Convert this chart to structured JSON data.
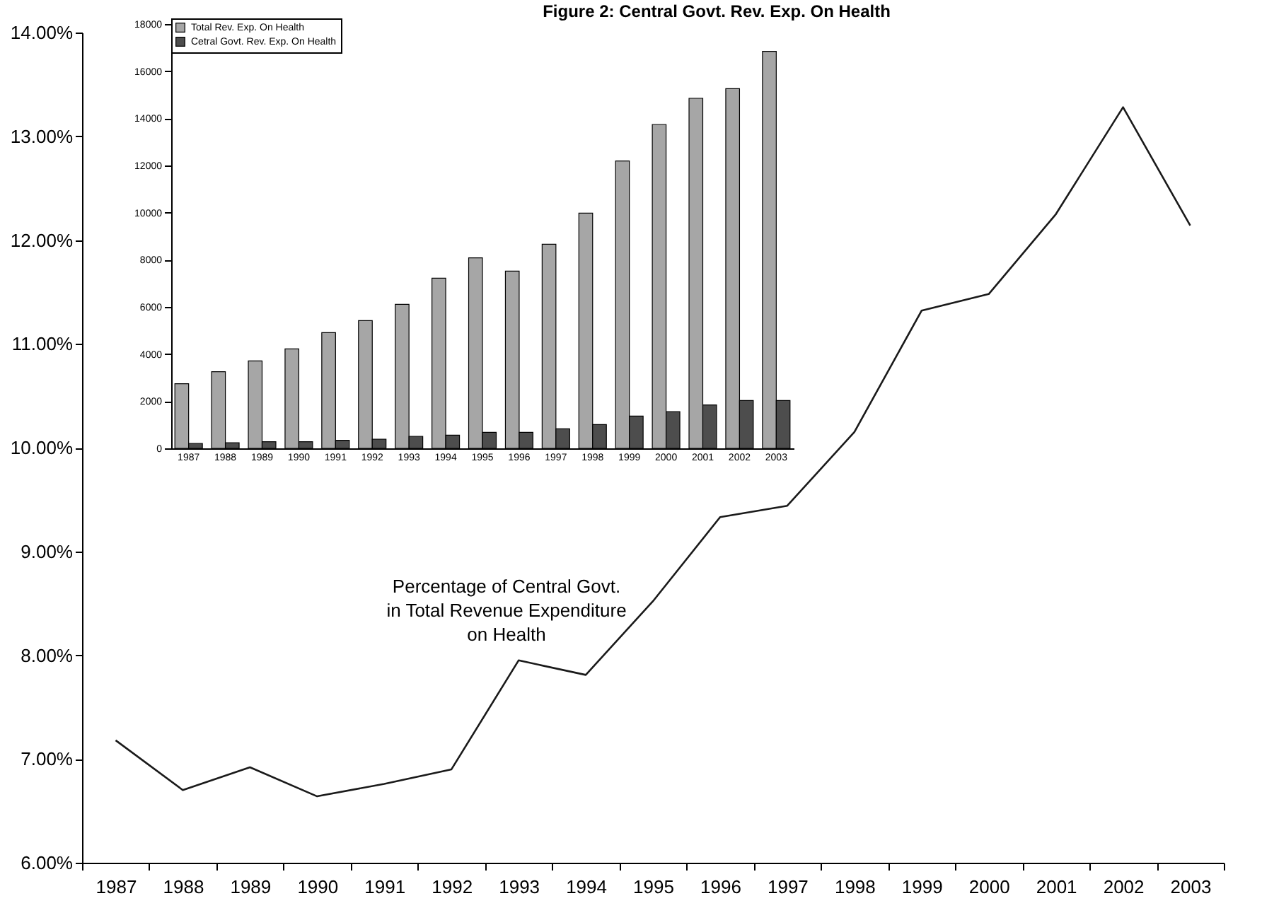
{
  "chart_data": [
    {
      "type": "line",
      "title": "Figure 2: Central Govt. Rev. Exp. On Health",
      "categories": [
        "1987",
        "1988",
        "1989",
        "1990",
        "1991",
        "1992",
        "1993",
        "1994",
        "1995",
        "1996",
        "1997",
        "1998",
        "1999",
        "2000",
        "2001",
        "2002",
        "2003"
      ],
      "series": [
        {
          "color": "#1a1a1a",
          "values": [
            7.18,
            6.7,
            6.92,
            6.64,
            6.76,
            6.9,
            7.95,
            7.81,
            8.52,
            9.33,
            9.44,
            10.15,
            11.32,
            11.48,
            12.25,
            13.28,
            12.14
          ]
        }
      ],
      "ylim": [
        6,
        14
      ],
      "yticks": [
        {
          "value": 6,
          "label": "6.00%"
        },
        {
          "value": 7,
          "label": "7.00%"
        },
        {
          "value": 8,
          "label": "8.00%"
        },
        {
          "value": 9,
          "label": "9.00%"
        },
        {
          "value": 10,
          "label": "10.00%"
        },
        {
          "value": 11,
          "label": "11.00%"
        },
        {
          "value": 12,
          "label": "12.00%"
        },
        {
          "value": 13,
          "label": "13.00%"
        },
        {
          "value": 14,
          "label": "14.00%"
        }
      ],
      "line_style": "solid",
      "annotations": [
        "Percentage of Central Govt.\nin Total Revenue Expenditure\non Health"
      ]
    },
    {
      "type": "bar",
      "categories": [
        "1987",
        "1988",
        "1989",
        "1990",
        "1991",
        "1992",
        "1993",
        "1994",
        "1995",
        "1996",
        "1997",
        "1998",
        "1999",
        "2000",
        "2001",
        "2002",
        "2003"
      ],
      "series": [
        {
          "name": "Total Rev. Exp. On Health",
          "color": "#a6a6a6",
          "values": [
            2740,
            3250,
            3710,
            4220,
            4910,
            5420,
            6110,
            7220,
            8080,
            7520,
            8660,
            9980,
            12190,
            13740,
            14850,
            15260,
            16840
          ]
        },
        {
          "name": "Cetral Govt. Rev. Exp. On Health",
          "color": "#4d4d4d",
          "values": [
            210,
            240,
            280,
            280,
            340,
            390,
            510,
            560,
            680,
            680,
            830,
            1010,
            1370,
            1560,
            1840,
            2030,
            2030
          ]
        }
      ],
      "ylim": [
        0,
        18000
      ],
      "yticks": [
        0,
        2000,
        4000,
        6000,
        8000,
        10000,
        12000,
        14000,
        16000,
        18000
      ],
      "legend": "top"
    }
  ]
}
